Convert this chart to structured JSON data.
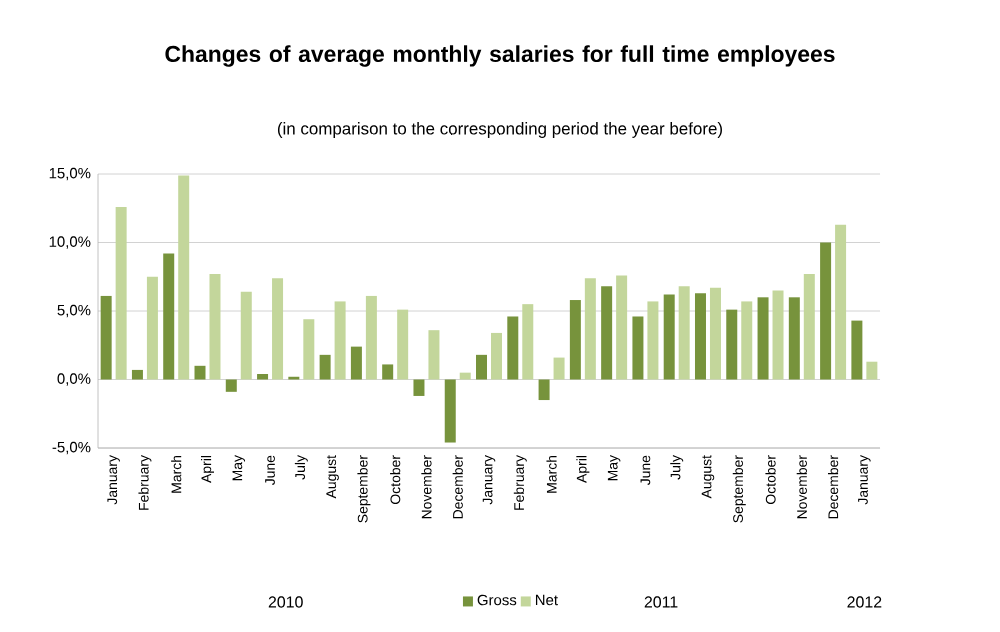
{
  "chart_data": {
    "type": "bar",
    "title": "Changes of average monthly salaries for full time employees",
    "subtitle": "(in comparison to the corresponding period the year before)",
    "categories": [
      "January",
      "February",
      "March",
      "April",
      "May",
      "June",
      "July",
      "August",
      "September",
      "October",
      "November",
      "December",
      "January",
      "February",
      "March",
      "April",
      "May",
      "June",
      "July",
      "August",
      "September",
      "October",
      "November",
      "December",
      "January"
    ],
    "series": [
      {
        "name": "Gross",
        "color": "#77933c",
        "values": [
          6.1,
          0.7,
          9.2,
          1.0,
          -0.9,
          0.4,
          0.2,
          1.8,
          2.4,
          1.1,
          -1.2,
          -4.6,
          1.8,
          4.6,
          -1.5,
          5.8,
          6.8,
          4.6,
          6.2,
          6.3,
          5.1,
          6.0,
          6.0,
          10.0,
          4.3
        ]
      },
      {
        "name": "Net",
        "color": "#c3d69b",
        "values": [
          12.6,
          7.5,
          14.9,
          7.7,
          6.4,
          7.4,
          4.4,
          5.7,
          6.1,
          5.1,
          3.6,
          0.5,
          3.4,
          5.5,
          1.6,
          7.4,
          7.6,
          5.7,
          6.8,
          6.7,
          5.7,
          6.5,
          7.7,
          11.3,
          1.3
        ]
      }
    ],
    "ylim": [
      -5,
      15
    ],
    "yticks": [
      {
        "value": -5,
        "label": "-5,0%"
      },
      {
        "value": 0,
        "label": "0,0%"
      },
      {
        "value": 5,
        "label": "5,0%"
      },
      {
        "value": 10,
        "label": "10,0%"
      },
      {
        "value": 15,
        "label": "15,0%"
      }
    ],
    "grid": "y",
    "legend": "bottom",
    "annotations": [
      "2010",
      "2011",
      "2012"
    ]
  }
}
